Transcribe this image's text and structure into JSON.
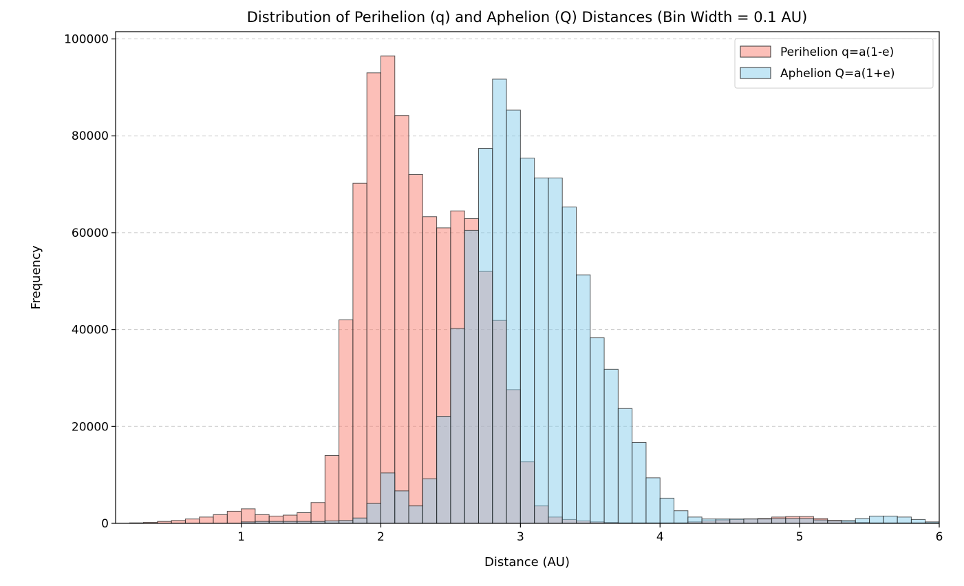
{
  "chart_data": {
    "type": "bar",
    "title": "Distribution of Perihelion (q) and Aphelion (Q) Distances (Bin Width = 0.1 AU)",
    "xlabel": "Distance (AU)",
    "ylabel": "Frequency",
    "xlim": [
      0.1,
      6.0
    ],
    "ylim": [
      0,
      101500
    ],
    "bin_width": 0.1,
    "x_ticks": [
      1,
      2,
      3,
      4,
      5,
      6
    ],
    "y_ticks": [
      0,
      20000,
      40000,
      60000,
      80000,
      100000
    ],
    "grid": "y-dashed",
    "legend_position": "top-right",
    "bin_starts": [
      0.2,
      0.3,
      0.4,
      0.5,
      0.6,
      0.7,
      0.8,
      0.9,
      1.0,
      1.1,
      1.2,
      1.3,
      1.4,
      1.5,
      1.6,
      1.7,
      1.8,
      1.9,
      2.0,
      2.1,
      2.2,
      2.3,
      2.4,
      2.5,
      2.6,
      2.7,
      2.8,
      2.9,
      3.0,
      3.1,
      3.2,
      3.3,
      3.4,
      3.5,
      3.6,
      3.7,
      3.8,
      3.9,
      4.0,
      4.1,
      4.2,
      4.3,
      4.4,
      4.5,
      4.6,
      4.7,
      4.8,
      4.9,
      5.0,
      5.1,
      5.2,
      5.3,
      5.4,
      5.5,
      5.6,
      5.7,
      5.8,
      5.9
    ],
    "series": [
      {
        "name": "Perihelion q=a(1-e)",
        "color": "#fa8072",
        "values": [
          100,
          200,
          400,
          600,
          900,
          1300,
          1800,
          2500,
          3000,
          1800,
          1500,
          1700,
          2200,
          4300,
          14000,
          42000,
          70200,
          93000,
          96500,
          84200,
          72000,
          63300,
          61000,
          64500,
          62900,
          52000,
          41900,
          27600,
          12700,
          3600,
          1300,
          800,
          500,
          300,
          200,
          100,
          100,
          100,
          100,
          100,
          300,
          500,
          700,
          800,
          900,
          1000,
          1300,
          1400,
          1400,
          1000,
          600,
          300,
          200,
          100,
          100,
          100,
          100,
          100
        ]
      },
      {
        "name": "Aphelion Q=a(1+e)",
        "color": "#87ceeb",
        "values": [
          0,
          0,
          0,
          0,
          0,
          0,
          0,
          0,
          300,
          400,
          400,
          400,
          400,
          400,
          500,
          600,
          1100,
          4100,
          10400,
          6700,
          3600,
          9200,
          22100,
          40200,
          60500,
          77400,
          91700,
          85300,
          75400,
          71300,
          71300,
          65300,
          51300,
          38300,
          31800,
          23700,
          16700,
          9400,
          5200,
          2600,
          1300,
          900,
          900,
          900,
          900,
          900,
          1000,
          1000,
          1000,
          700,
          500,
          600,
          1000,
          1500,
          1500,
          1300,
          800,
          300
        ]
      }
    ]
  }
}
